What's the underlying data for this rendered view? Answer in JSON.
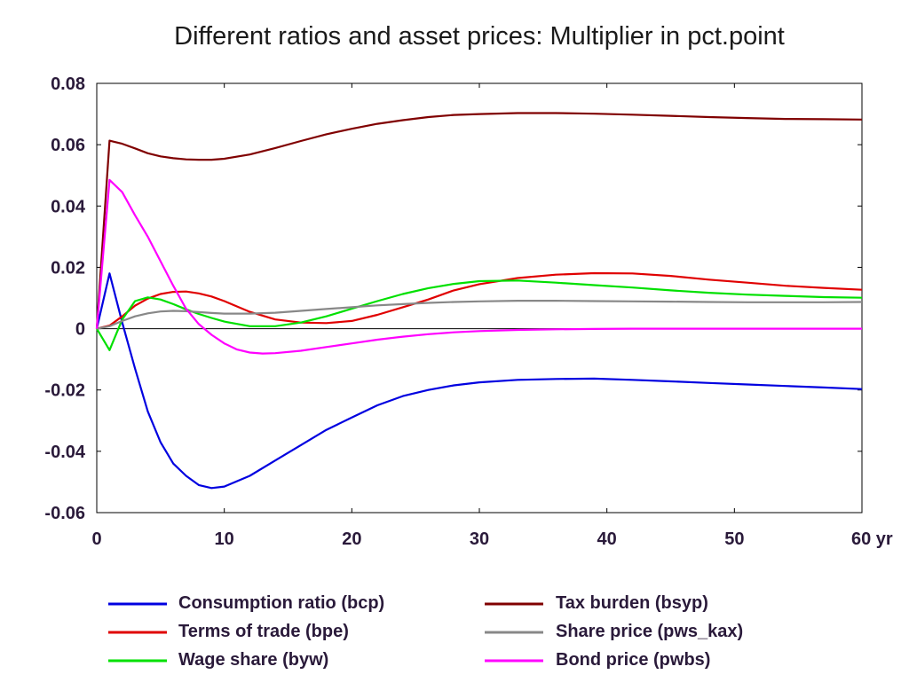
{
  "chart_data": {
    "type": "line",
    "title": "Different ratios and asset prices: Multiplier in pct.point",
    "x_unit_label": "yr",
    "xlim": [
      0,
      60
    ],
    "ylim": [
      -0.06,
      0.08
    ],
    "x_ticks": [
      0,
      10,
      20,
      30,
      40,
      50,
      60
    ],
    "x_tick_labels": [
      "0",
      "10",
      "20",
      "30",
      "40",
      "50",
      "60 yr"
    ],
    "y_ticks": [
      -0.06,
      -0.04,
      -0.02,
      0,
      0.02,
      0.04,
      0.06,
      0.08
    ],
    "y_tick_labels": [
      "-0.06",
      "-0.04",
      "-0.02",
      "0",
      "0.02",
      "0.04",
      "0.06",
      "0.08"
    ],
    "zero_line": true,
    "legend_position": "bottom",
    "series": [
      {
        "name": "Consumption ratio (bcp)",
        "color": "#0000e0",
        "x": [
          0,
          1,
          2,
          3,
          4,
          5,
          6,
          7,
          8,
          9,
          10,
          12,
          14,
          16,
          18,
          20,
          22,
          24,
          26,
          28,
          30,
          33,
          36,
          39,
          42,
          45,
          48,
          51,
          54,
          57,
          60
        ],
        "y": [
          0,
          0.018,
          0.002,
          -0.013,
          -0.027,
          -0.037,
          -0.044,
          -0.048,
          -0.051,
          -0.052,
          -0.0515,
          -0.048,
          -0.043,
          -0.038,
          -0.033,
          -0.029,
          -0.025,
          -0.022,
          -0.02,
          -0.0185,
          -0.0175,
          -0.0167,
          -0.0164,
          -0.0163,
          -0.0167,
          -0.0172,
          -0.0177,
          -0.0182,
          -0.0187,
          -0.0192,
          -0.0197
        ]
      },
      {
        "name": "Terms of trade (bpe)",
        "color": "#e00000",
        "x": [
          0,
          1,
          2,
          3,
          4,
          5,
          6,
          7,
          8,
          9,
          10,
          12,
          14,
          16,
          18,
          20,
          22,
          24,
          26,
          28,
          30,
          33,
          36,
          39,
          42,
          45,
          48,
          51,
          54,
          57,
          60
        ],
        "y": [
          0,
          0.001,
          0.004,
          0.0075,
          0.0098,
          0.0113,
          0.012,
          0.0121,
          0.0115,
          0.0105,
          0.009,
          0.0055,
          0.003,
          0.002,
          0.0018,
          0.0025,
          0.0045,
          0.007,
          0.0095,
          0.0125,
          0.0145,
          0.0165,
          0.0176,
          0.0181,
          0.018,
          0.0172,
          0.016,
          0.015,
          0.014,
          0.0133,
          0.0127
        ]
      },
      {
        "name": "Wage share (byw)",
        "color": "#00e000",
        "x": [
          0,
          1,
          2,
          3,
          4,
          5,
          6,
          7,
          8,
          9,
          10,
          12,
          14,
          16,
          18,
          20,
          22,
          24,
          26,
          28,
          30,
          33,
          36,
          39,
          42,
          45,
          48,
          51,
          54,
          57,
          60
        ],
        "y": [
          0,
          -0.007,
          0.003,
          0.009,
          0.0102,
          0.0095,
          0.008,
          0.0063,
          0.0048,
          0.0035,
          0.0023,
          0.0008,
          0.0008,
          0.002,
          0.004,
          0.0065,
          0.009,
          0.0113,
          0.0132,
          0.0146,
          0.0155,
          0.0157,
          0.015,
          0.0142,
          0.0134,
          0.0125,
          0.0117,
          0.0111,
          0.0107,
          0.0103,
          0.0101
        ]
      },
      {
        "name": "Tax burden (bsyp)",
        "color": "#800000",
        "x": [
          0,
          1,
          2,
          3,
          4,
          5,
          6,
          7,
          8,
          9,
          10,
          12,
          14,
          16,
          18,
          20,
          22,
          24,
          26,
          28,
          30,
          33,
          36,
          39,
          42,
          45,
          48,
          51,
          54,
          57,
          60
        ],
        "y": [
          0,
          0.0613,
          0.0603,
          0.0588,
          0.0572,
          0.0562,
          0.0556,
          0.0552,
          0.0551,
          0.0551,
          0.0554,
          0.0568,
          0.0589,
          0.0612,
          0.0634,
          0.0652,
          0.0668,
          0.068,
          0.069,
          0.0697,
          0.07,
          0.0703,
          0.0703,
          0.0701,
          0.0698,
          0.0694,
          0.069,
          0.0687,
          0.0684,
          0.0683,
          0.0682
        ]
      },
      {
        "name": "Share price (pws_kax)",
        "color": "#888888",
        "x": [
          0,
          1,
          2,
          3,
          4,
          5,
          6,
          7,
          8,
          9,
          10,
          12,
          14,
          16,
          18,
          20,
          22,
          24,
          26,
          28,
          30,
          33,
          36,
          39,
          42,
          45,
          48,
          51,
          54,
          57,
          60
        ],
        "y": [
          0,
          0.0008,
          0.0025,
          0.004,
          0.005,
          0.0056,
          0.0058,
          0.0057,
          0.0054,
          0.0051,
          0.0049,
          0.0049,
          0.0052,
          0.0058,
          0.0064,
          0.007,
          0.0076,
          0.008,
          0.0084,
          0.0087,
          0.0089,
          0.0091,
          0.0091,
          0.009,
          0.0089,
          0.0088,
          0.0087,
          0.0086,
          0.0086,
          0.0086,
          0.0087
        ]
      },
      {
        "name": "Bond price (pwbs)",
        "color": "#ff00ff",
        "x": [
          0,
          1,
          2,
          3,
          4,
          5,
          6,
          7,
          8,
          9,
          10,
          11,
          12,
          13,
          14,
          16,
          18,
          20,
          22,
          24,
          26,
          28,
          30,
          33,
          36,
          39,
          42,
          45,
          48,
          51,
          54,
          57,
          60
        ],
        "y": [
          0,
          0.0485,
          0.0445,
          0.037,
          0.03,
          0.022,
          0.014,
          0.0065,
          0.0015,
          -0.002,
          -0.0048,
          -0.0068,
          -0.0078,
          -0.0081,
          -0.008,
          -0.0072,
          -0.006,
          -0.0048,
          -0.0036,
          -0.0026,
          -0.0018,
          -0.0012,
          -0.0008,
          -0.0004,
          -0.0002,
          -0.0001,
          0,
          0,
          0,
          0,
          0,
          0,
          0
        ]
      }
    ]
  }
}
